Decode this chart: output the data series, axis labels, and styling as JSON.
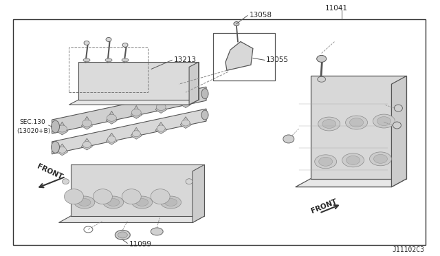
{
  "bg_color": "#ffffff",
  "border_color": "#333333",
  "line_color": "#444444",
  "text_color": "#222222",
  "fig_width": 6.4,
  "fig_height": 3.72,
  "dpi": 100,
  "diagram_id": "J11102C3",
  "label_13058": "13058",
  "label_13055": "13055",
  "label_13213": "13213",
  "label_11041": "11041",
  "label_sec130": "SEC.130",
  "label_sec130b": "(13020+B)",
  "label_front": "FRONT",
  "label_11099": "11099"
}
